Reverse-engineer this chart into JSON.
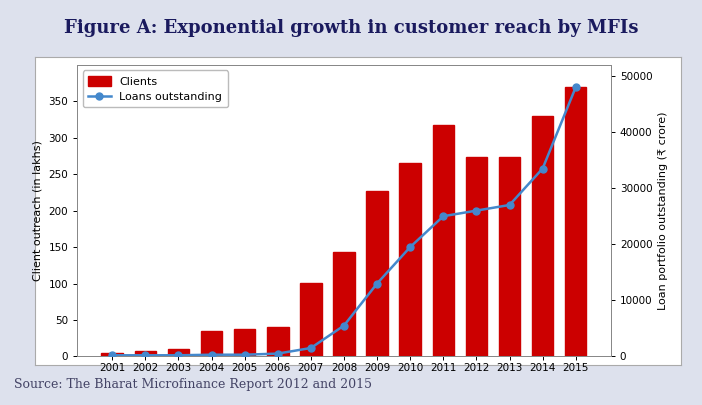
{
  "title": "Figure A: Exponential growth in customer reach by MFIs",
  "source": "Source: The Bharat Microfinance Report 2012 and 2015",
  "years": [
    2001,
    2002,
    2003,
    2004,
    2005,
    2006,
    2007,
    2008,
    2009,
    2010,
    2011,
    2012,
    2013,
    2014,
    2015
  ],
  "clients_lakhs": [
    5,
    7,
    10,
    35,
    37,
    40,
    101,
    143,
    227,
    265,
    318,
    274,
    274,
    330,
    370
  ],
  "loans_crore": [
    200,
    200,
    200,
    300,
    300,
    500,
    1500,
    5500,
    13000,
    19500,
    25000,
    26000,
    27000,
    33500,
    48000
  ],
  "bar_color": "#cc0000",
  "line_color": "#4488cc",
  "background_color": "#dde1ed",
  "plot_bg_color": "#ffffff",
  "left_ylabel": "Client outreach (in lakhs)",
  "right_ylabel": "Loan portfolio outstanding (₹ crore)",
  "left_ylim": [
    0,
    400
  ],
  "right_ylim": [
    0,
    52000
  ],
  "left_yticks": [
    0,
    50,
    100,
    150,
    200,
    250,
    300,
    350
  ],
  "right_yticks": [
    0,
    10000,
    20000,
    30000,
    40000,
    50000
  ],
  "title_fontsize": 13,
  "source_fontsize": 9,
  "axis_label_fontsize": 8,
  "tick_fontsize": 7.5,
  "legend_fontsize": 8
}
